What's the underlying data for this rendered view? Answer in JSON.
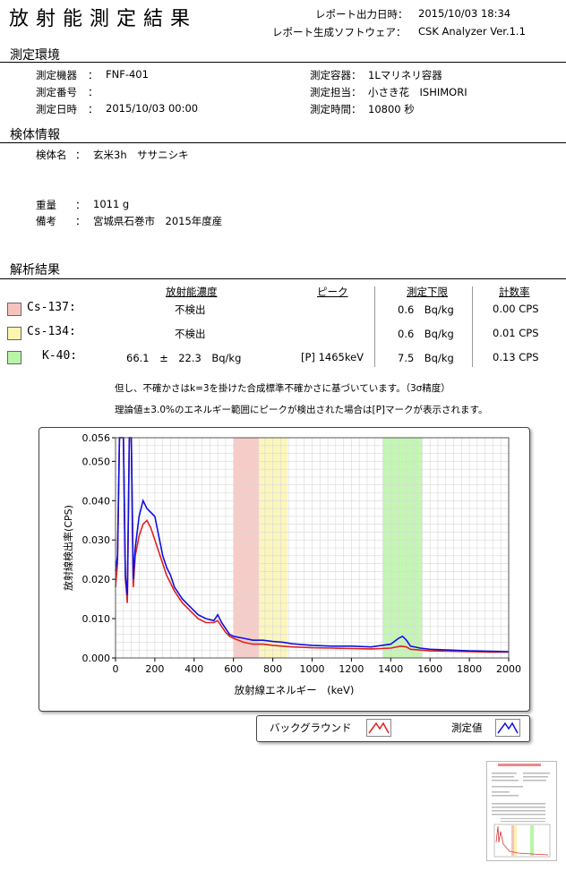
{
  "title": "放射能測定結果",
  "header": {
    "output_label": "レポート出力日時：",
    "output_value": "2015/10/03 18:34",
    "software_label": "レポート生成ソフトウェア：",
    "software_value": "CSK Analyzer Ver.1.1"
  },
  "env": {
    "heading": "測定環境",
    "device_label": "測定機器",
    "device_value": "FNF-401",
    "number_label": "測定番号",
    "number_value": "",
    "date_label": "測定日時",
    "date_value": "2015/10/03 00:00",
    "container_label": "測定容器：",
    "container_value": "1Lマリネリ容器",
    "operator_label": "測定担当：",
    "operator_value": "小さき花　ISHIMORI",
    "time_label": "測定時間：",
    "time_value": "10800 秒",
    "colon": "："
  },
  "sample": {
    "heading": "検体情報",
    "name_label": "検体名",
    "name_value": "玄米3h　ササニシキ",
    "weight_label": "重量",
    "weight_value": "1011 g",
    "note_label": "備考",
    "note_value": "宮城県石巻市　2015年度産"
  },
  "results": {
    "heading": "解析結果",
    "col_concentration": "放射能濃度",
    "col_peak": "ピーク",
    "col_limit": "測定下限",
    "col_rate": "計数率",
    "rows": [
      {
        "nuclide": "Cs-137:",
        "color": "#f5c3be",
        "value": "不検出",
        "peak": "",
        "limit": "0.6　Bq/kg",
        "rate": "0.00 CPS"
      },
      {
        "nuclide": "Cs-134:",
        "color": "#fbf5b0",
        "value": "不検出",
        "peak": "",
        "limit": "0.6　Bq/kg",
        "rate": "0.01 CPS"
      },
      {
        "nuclide": "K-40:",
        "color": "#b8f5a6",
        "value": "66.1　±　22.3　Bq/kg",
        "peak": "[P] 1465keV",
        "limit": "7.5　Bq/kg",
        "rate": "0.13 CPS"
      }
    ],
    "note1": "但し、不確かさはk=3を掛けた合成標準不確かさに基づいています。（3σ精度）",
    "note2": "理論値±3.0%のエネルギー範囲にピークが検出された場合は[P]マークが表示されます。"
  },
  "chart_data": {
    "type": "line",
    "xlabel": "放射線エネルギー　(keV)",
    "ylabel": "放射線検出率(CPS)",
    "xlim": [
      0,
      2000
    ],
    "ylim": [
      0,
      0.056
    ],
    "xticks": [
      "0",
      "200",
      "400",
      "600",
      "800",
      "1000",
      "1200",
      "1400",
      "1600",
      "1800",
      "2000"
    ],
    "yticks": [
      "0.000",
      "0.010",
      "0.020",
      "0.030",
      "0.040",
      "0.050",
      "0.056"
    ],
    "bands": [
      {
        "name": "Cs-137",
        "from": 600,
        "to": 730,
        "color": "#f5c3be"
      },
      {
        "name": "Cs-134",
        "from": 730,
        "to": 875,
        "color": "#fbf5b0"
      },
      {
        "name": "K-40",
        "from": 1360,
        "to": 1560,
        "color": "#b8f5a6"
      }
    ],
    "series": [
      {
        "name": "バックグラウンド",
        "color": "#e02020",
        "x": [
          0,
          10,
          20,
          30,
          40,
          50,
          60,
          70,
          80,
          90,
          100,
          120,
          140,
          160,
          180,
          200,
          220,
          240,
          260,
          280,
          300,
          340,
          380,
          420,
          460,
          500,
          520,
          540,
          560,
          580,
          600,
          650,
          700,
          750,
          800,
          850,
          900,
          950,
          1000,
          1100,
          1200,
          1300,
          1400,
          1450,
          1480,
          1500,
          1550,
          1600,
          1700,
          1800,
          1900,
          2000
        ],
        "y": [
          0.018,
          0.024,
          0.056,
          0.056,
          0.056,
          0.02,
          0.014,
          0.056,
          0.056,
          0.018,
          0.026,
          0.031,
          0.034,
          0.035,
          0.033,
          0.03,
          0.027,
          0.024,
          0.021,
          0.019,
          0.017,
          0.014,
          0.012,
          0.01,
          0.009,
          0.009,
          0.0095,
          0.008,
          0.0065,
          0.0055,
          0.005,
          0.004,
          0.0035,
          0.0035,
          0.0032,
          0.003,
          0.0028,
          0.0027,
          0.0026,
          0.0025,
          0.0024,
          0.0023,
          0.0025,
          0.003,
          0.0028,
          0.0022,
          0.002,
          0.0018,
          0.0017,
          0.0016,
          0.0015,
          0.0015
        ]
      },
      {
        "name": "測定値",
        "color": "#1010e0",
        "x": [
          0,
          10,
          20,
          30,
          40,
          50,
          60,
          70,
          80,
          90,
          100,
          120,
          140,
          160,
          180,
          200,
          220,
          240,
          260,
          280,
          300,
          340,
          380,
          420,
          460,
          500,
          520,
          540,
          560,
          580,
          600,
          650,
          700,
          750,
          800,
          850,
          900,
          950,
          1000,
          1100,
          1200,
          1300,
          1400,
          1440,
          1460,
          1480,
          1500,
          1550,
          1600,
          1700,
          1800,
          1900,
          2000
        ],
        "y": [
          0.022,
          0.026,
          0.056,
          0.056,
          0.056,
          0.021,
          0.016,
          0.056,
          0.056,
          0.02,
          0.028,
          0.036,
          0.04,
          0.038,
          0.037,
          0.036,
          0.031,
          0.026,
          0.023,
          0.021,
          0.018,
          0.015,
          0.013,
          0.011,
          0.01,
          0.0095,
          0.011,
          0.009,
          0.0075,
          0.006,
          0.0055,
          0.005,
          0.0045,
          0.0045,
          0.0042,
          0.004,
          0.0036,
          0.0034,
          0.0032,
          0.003,
          0.003,
          0.0028,
          0.0035,
          0.005,
          0.0055,
          0.0045,
          0.003,
          0.0025,
          0.0022,
          0.002,
          0.0018,
          0.0017,
          0.0016
        ]
      }
    ]
  },
  "legend": {
    "background": "バックグラウンド",
    "measured": "測定値"
  }
}
